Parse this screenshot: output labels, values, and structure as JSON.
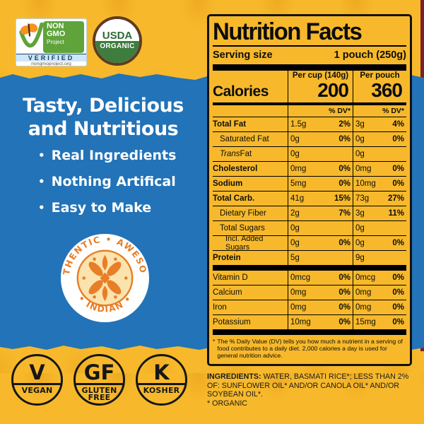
{
  "badges": {
    "non_gmo": {
      "name_line1": "NON",
      "name_line2": "GMO",
      "name_line3": "Project",
      "verified": "VERIFIED",
      "url": "nongmoproject.org"
    },
    "usda": {
      "line1": "USDA",
      "line2": "ORGANIC"
    }
  },
  "hero": {
    "bullet_char": "•",
    "headline_line1": "Tasty, Delicious",
    "headline_line2": "and Nutritious",
    "bullets": [
      "Real Ingredients",
      "Nothing Artifical",
      "Easy to Make"
    ]
  },
  "seal": {
    "arc_top": "AUTHENTIC • AWESOME",
    "arc_bottom": "• INDIAN •"
  },
  "certs": [
    {
      "id": "vegan",
      "letter": "V",
      "label_lines": [
        "VEGAN"
      ]
    },
    {
      "id": "gluten-free",
      "letter": "GF",
      "label_lines": [
        "GLUTEN",
        "FREE"
      ]
    },
    {
      "id": "kosher",
      "letter": "K",
      "label_lines": [
        "KOSHER"
      ]
    }
  ],
  "nutrition": {
    "title": "Nutrition Facts",
    "serving_label": "Serving size",
    "serving_value": "1 pouch (250g)",
    "col_cup_header": "Per cup (140g)",
    "col_pouch_header": "Per pouch",
    "calories_label": "Calories",
    "calories_cup": "200",
    "calories_pouch": "360",
    "dv_header": "% DV*",
    "rows": [
      {
        "name": "Total Fat",
        "style": "bold",
        "cup": "1.5g",
        "cup_dv": "2%",
        "pouch": "3g",
        "pouch_dv": "4%"
      },
      {
        "name": "Saturated Fat",
        "style": "sub",
        "cup": "0g",
        "cup_dv": "0%",
        "pouch": "0g",
        "pouch_dv": "0%"
      },
      {
        "name": "Trans Fat",
        "style": "sub-italic",
        "cup": "0g",
        "cup_dv": "",
        "pouch": "0g",
        "pouch_dv": ""
      },
      {
        "name": "Cholesterol",
        "style": "bold",
        "cup": "0mg",
        "cup_dv": "0%",
        "pouch": "0mg",
        "pouch_dv": "0%"
      },
      {
        "name": "Sodium",
        "style": "bold",
        "cup": "5mg",
        "cup_dv": "0%",
        "pouch": "10mg",
        "pouch_dv": "0%"
      },
      {
        "name": "Total Carb.",
        "style": "bold",
        "cup": "41g",
        "cup_dv": "15%",
        "pouch": "73g",
        "pouch_dv": "27%"
      },
      {
        "name": "Dietary Fiber",
        "style": "sub",
        "cup": "2g",
        "cup_dv": "7%",
        "pouch": "3g",
        "pouch_dv": "11%"
      },
      {
        "name": "Total Sugars",
        "style": "sub",
        "cup": "0g",
        "cup_dv": "",
        "pouch": "0g",
        "pouch_dv": ""
      },
      {
        "name": "Incl. Added Sugars",
        "style": "sub2",
        "cup": "0g",
        "cup_dv": "0%",
        "pouch": "0g",
        "pouch_dv": "0%"
      },
      {
        "name": "Protein",
        "style": "bold",
        "cup": "5g",
        "cup_dv": "",
        "pouch": "9g",
        "pouch_dv": ""
      }
    ],
    "vitamins": [
      {
        "name": "Vitamin D",
        "cup": "0mcg",
        "cup_dv": "0%",
        "pouch": "0mcg",
        "pouch_dv": "0%"
      },
      {
        "name": "Calcium",
        "cup": "0mg",
        "cup_dv": "0%",
        "pouch": "0mg",
        "pouch_dv": "0%"
      },
      {
        "name": "Iron",
        "cup": "0mg",
        "cup_dv": "0%",
        "pouch": "0mg",
        "pouch_dv": "0%"
      },
      {
        "name": "Potassium",
        "cup": "10mg",
        "cup_dv": "0%",
        "pouch": "15mg",
        "pouch_dv": "0%"
      }
    ],
    "footnote_star": "*",
    "footnote": "The % Daily Value (DV) tells you how much a nutrient in a serving of food contributes to a daily diet. 2,000 calories a day is used for general nutrition advice."
  },
  "ingredients": {
    "label": "INGREDIENTS:",
    "text": " WATER, BASMATI RICE*; LESS THAN 2% OF: SUNFLOWER OIL* AND/OR CANOLA OIL* AND/OR SOYBEAN OIL*.",
    "note": "* ORGANIC"
  },
  "colors": {
    "yellow": "#F7B92B",
    "pattern_orange": "#E89B16",
    "blue": "#2273B8",
    "seal_orange": "#E87E27",
    "maroon": "#7B2125",
    "green": "#3E7D3D",
    "nongmo_green": "#5FA33A",
    "nongmo_navy": "#15406B",
    "butterfly_orange": "#F6921E"
  }
}
